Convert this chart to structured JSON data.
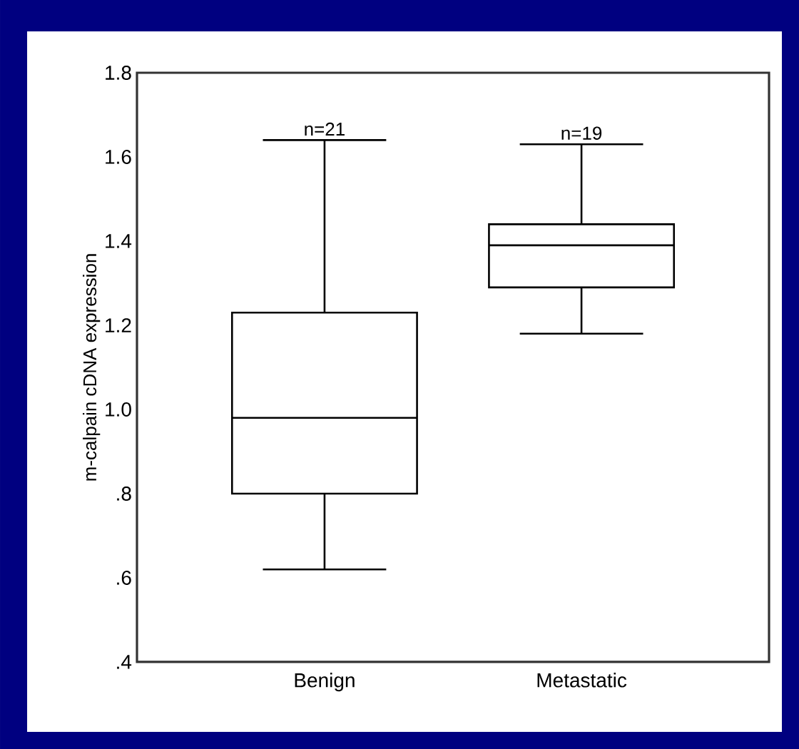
{
  "chart_data": {
    "type": "box",
    "ylabel": "m-calpain cDNA expression",
    "categories": [
      "Benign",
      "Metastatic"
    ],
    "boxes": [
      {
        "low": 0.62,
        "q1": 0.8,
        "median": 0.98,
        "q3": 1.23,
        "high": 1.64
      },
      {
        "low": 1.18,
        "q1": 1.29,
        "median": 1.39,
        "q3": 1.44,
        "high": 1.63
      }
    ],
    "ylim": [
      0.4,
      1.8
    ],
    "yticks": [
      {
        "value": 0.4,
        "label": ".4"
      },
      {
        "value": 0.6,
        "label": ".6"
      },
      {
        "value": 0.8,
        "label": ".8"
      },
      {
        "value": 1.0,
        "label": "1.0"
      },
      1.2,
      1.4,
      1.6,
      1.8
    ],
    "annotations": [
      "n=21",
      "n=19"
    ],
    "grid": false
  }
}
